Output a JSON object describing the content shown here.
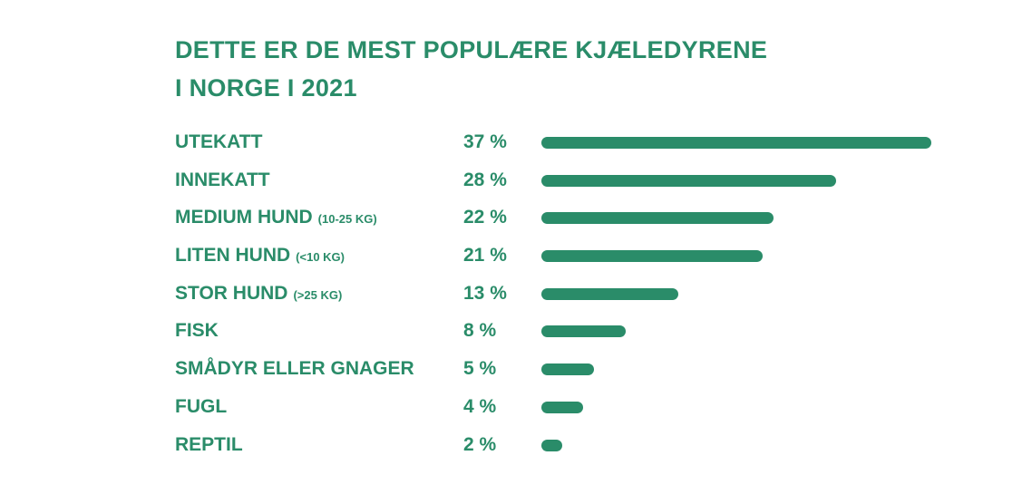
{
  "colors": {
    "accent": "#2a8c69"
  },
  "chart_data": {
    "type": "bar",
    "orientation": "horizontal",
    "title": "DETTE ER DE MEST POPULÆRE KJÆLEDYRENE",
    "title_line2": "I NORGE I 2021",
    "xlim": [
      0,
      37
    ],
    "items": [
      {
        "label": "UTEKATT",
        "sub": "",
        "value": 37,
        "value_text": "37 %"
      },
      {
        "label": "INNEKATT",
        "sub": "",
        "value": 28,
        "value_text": "28 %"
      },
      {
        "label": "MEDIUM HUND",
        "sub": "(10-25 KG)",
        "value": 22,
        "value_text": "22 %"
      },
      {
        "label": "LITEN HUND",
        "sub": "(<10 KG)",
        "value": 21,
        "value_text": "21 %"
      },
      {
        "label": "STOR HUND",
        "sub": "(>25 KG)",
        "value": 13,
        "value_text": "13 %"
      },
      {
        "label": "FISK",
        "sub": "",
        "value": 8,
        "value_text": "8 %"
      },
      {
        "label": "SMÅDYR ELLER GNAGER",
        "sub": "",
        "value": 5,
        "value_text": "5 %"
      },
      {
        "label": "FUGL",
        "sub": "",
        "value": 4,
        "value_text": "4 %"
      },
      {
        "label": "REPTIL",
        "sub": "",
        "value": 2,
        "value_text": "2 %"
      }
    ]
  }
}
